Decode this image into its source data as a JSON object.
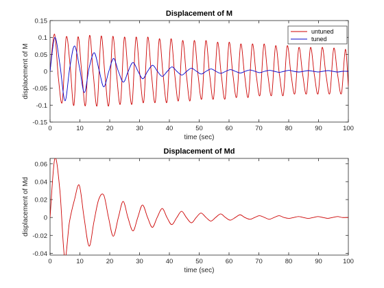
{
  "chart_data": [
    {
      "type": "line",
      "title": "Displacement of M",
      "xlabel": "time (sec)",
      "ylabel": "displacement of M",
      "xlim": [
        0,
        100
      ],
      "ylim": [
        -0.15,
        0.15
      ],
      "xticks": [
        "0",
        "10",
        "20",
        "30",
        "40",
        "50",
        "60",
        "70",
        "80",
        "90",
        "100"
      ],
      "yticks": [
        "-0.15",
        "-0.1",
        "-0.05",
        "0",
        "0.05",
        "0.1",
        "0.15"
      ],
      "legend": {
        "position": "top-right",
        "entries": [
          "untuned",
          "tuned"
        ]
      },
      "grid": false,
      "series": [
        {
          "name": "untuned",
          "color": "#cc0000",
          "x": [
            0,
            1.5,
            2.8,
            4.1,
            5.4,
            6.7,
            8.0,
            9.3,
            10.6,
            11.9,
            13.2,
            14.5,
            15.8,
            17.1,
            18.4,
            19.7,
            21.0,
            22.3,
            23.6,
            24.9,
            26.2,
            27.5,
            28.8,
            30.1,
            31.4,
            32.7,
            34.0,
            35.3,
            36.6,
            37.9,
            39.2,
            40.5,
            41.8,
            43.1,
            44.4,
            45.7,
            47.0,
            48.3,
            49.6,
            50.9,
            52.2,
            53.5,
            54.8,
            56.1,
            57.4,
            58.7,
            60.0,
            61.3,
            62.6,
            63.9,
            65.2,
            66.5,
            67.8,
            69.1,
            70.4,
            71.7,
            73.0,
            74.3,
            75.6,
            76.9,
            78.2,
            79.5,
            80.8,
            82.1,
            83.4,
            84.7,
            86.0,
            87.3,
            88.6,
            89.9,
            91.2,
            92.5,
            93.8,
            95.1,
            96.4,
            97.7,
            99.0,
            100
          ],
          "y": [
            0,
            0.11,
            -0.02,
            -0.09,
            0.1,
            0.02,
            -0.1,
            0.1,
            0.0,
            -0.1,
            0.105,
            -0.01,
            -0.1,
            0.103,
            -0.01,
            -0.1,
            0.102,
            -0.01,
            -0.095,
            0.1,
            -0.01,
            -0.095,
            0.1,
            -0.01,
            -0.09,
            0.1,
            -0.01,
            -0.09,
            0.095,
            -0.01,
            -0.09,
            0.095,
            -0.01,
            -0.085,
            0.09,
            -0.01,
            -0.085,
            0.09,
            -0.01,
            -0.08,
            0.09,
            -0.01,
            -0.08,
            0.085,
            -0.01,
            -0.08,
            0.085,
            -0.01,
            -0.075,
            0.08,
            -0.01,
            -0.075,
            0.08,
            -0.01,
            -0.07,
            0.08,
            -0.01,
            -0.07,
            0.075,
            -0.01,
            -0.07,
            0.075,
            -0.01,
            -0.065,
            0.07,
            -0.01,
            -0.065,
            0.07,
            -0.01,
            -0.065,
            0.07,
            -0.01,
            -0.065,
            0.068,
            -0.01,
            -0.065,
            0.065,
            -0.045
          ]
        },
        {
          "name": "tuned",
          "color": "#0000cc",
          "x": [
            0,
            1.6,
            3.3,
            5.0,
            6.6,
            8.2,
            9.9,
            11.5,
            13.1,
            14.8,
            16.4,
            18.0,
            19.7,
            21.3,
            22.9,
            24.6,
            26.2,
            27.8,
            29.5,
            31.1,
            32.7,
            34.4,
            36.0,
            37.6,
            39.3,
            40.9,
            42.5,
            44.2,
            45.8,
            47.4,
            49.1,
            50.7,
            52.3,
            54.0,
            55.6,
            57.2,
            58.9,
            60.5,
            62.1,
            63.8,
            65.4,
            67.0,
            68.7,
            70.3,
            71.9,
            73.6,
            75.2,
            76.8,
            78.5,
            80.1,
            81.7,
            83.4,
            85.0,
            86.6,
            88.3,
            89.9,
            91.5,
            93.2,
            94.8,
            96.4,
            98.1,
            100
          ],
          "y": [
            0,
            0.1,
            0.02,
            -0.087,
            0.01,
            0.075,
            0.01,
            -0.063,
            0.01,
            0.055,
            0.005,
            -0.046,
            0.0,
            0.038,
            0.0,
            -0.032,
            0.0,
            0.026,
            0.0,
            -0.022,
            0.0,
            0.018,
            0.0,
            -0.015,
            0.0,
            0.013,
            0.0,
            -0.011,
            0.0,
            0.009,
            0.0,
            -0.008,
            0.0,
            0.007,
            0.0,
            -0.006,
            0.0,
            0.005,
            0.0,
            -0.005,
            0.0,
            0.004,
            0.0,
            -0.004,
            0.0,
            0.003,
            0.0,
            -0.003,
            0.0,
            0.003,
            0.0,
            -0.002,
            0.0,
            0.002,
            0.0,
            -0.002,
            0.0,
            0.002,
            0.0,
            -0.002,
            0.0,
            0.0
          ]
        }
      ]
    },
    {
      "type": "line",
      "title": "Displacement of Md",
      "xlabel": "time (sec)",
      "ylabel": "displacement of Md",
      "xlim": [
        0,
        100
      ],
      "ylim": [
        -0.042,
        0.066
      ],
      "xticks": [
        "0",
        "10",
        "20",
        "30",
        "40",
        "50",
        "60",
        "70",
        "80",
        "90",
        "100"
      ],
      "yticks": [
        "-0.04",
        "-0.02",
        "0",
        "0.02",
        "0.04",
        "0.06"
      ],
      "grid": false,
      "series": [
        {
          "color": "#cc0000",
          "x": [
            0,
            1.6,
            3.3,
            4.9,
            6.5,
            8.2,
            9.8,
            11.4,
            13.1,
            14.7,
            16.3,
            18.0,
            19.6,
            21.2,
            22.9,
            24.5,
            26.1,
            27.8,
            29.4,
            31.0,
            32.7,
            34.3,
            35.9,
            37.6,
            39.2,
            40.8,
            42.5,
            44.1,
            45.7,
            47.4,
            49.0,
            50.6,
            52.3,
            53.9,
            55.5,
            57.2,
            58.8,
            60.4,
            62.1,
            63.7,
            65.3,
            67.0,
            68.6,
            70.2,
            71.9,
            73.5,
            75.1,
            76.8,
            78.4,
            80.0,
            81.7,
            83.3,
            84.9,
            86.6,
            88.2,
            89.8,
            91.5,
            93.1,
            94.7,
            96.4,
            98.0,
            100
          ],
          "y": [
            0,
            0.066,
            0.03,
            -0.045,
            -0.005,
            0.02,
            0.036,
            0.0,
            -0.032,
            -0.005,
            0.02,
            0.025,
            0.0,
            -0.021,
            0.0,
            0.018,
            0.0,
            -0.015,
            0.0,
            0.014,
            0.0,
            -0.011,
            0.0,
            0.01,
            0.0,
            -0.008,
            0.0,
            0.007,
            0.0,
            -0.006,
            0.0,
            0.005,
            0.0,
            -0.004,
            0.0,
            0.004,
            0.0,
            -0.003,
            0.0,
            0.003,
            0.0,
            -0.002,
            0.0,
            0.002,
            0.0,
            -0.002,
            0.0,
            0.002,
            0.0,
            -0.001,
            0.0,
            0.001,
            0.0,
            -0.001,
            0.0,
            0.001,
            0.0,
            -0.001,
            0.0,
            0.001,
            0.0,
            0.0
          ]
        }
      ]
    }
  ]
}
